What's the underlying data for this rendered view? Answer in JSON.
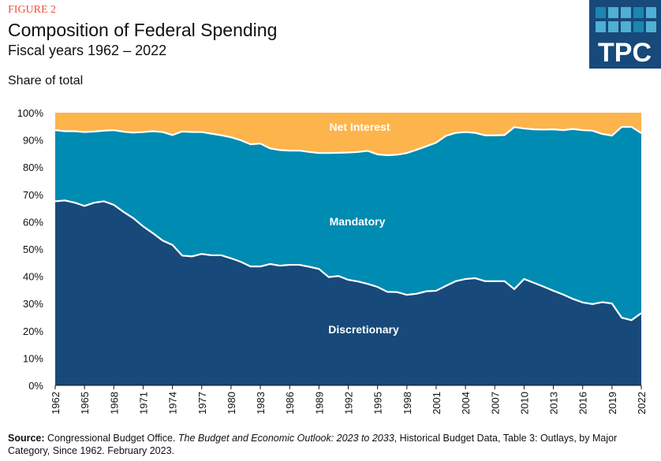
{
  "header": {
    "figure": "FIGURE 2",
    "title": "Composition of Federal Spending",
    "subtitle": "Fiscal years 1962 – 2022",
    "logo_text": "TPC"
  },
  "source": {
    "label": "Source:",
    "text1": " Congressional Budget Office. ",
    "italic": "The Budget and Economic Outlook: 2023 to 2033",
    "text2": ", Historical Budget Data, Table 3: Outlays, by Major Category, Since 1962. February 2023."
  },
  "chart_data": {
    "type": "area",
    "stacked": true,
    "title": "Composition of Federal Spending",
    "subtitle": "Fiscal years 1962 – 2022",
    "ylabel": "Share of total",
    "xlabel": "",
    "ylim": [
      0,
      100
    ],
    "xlim": [
      1962,
      2022
    ],
    "yticks": [
      "0%",
      "10%",
      "20%",
      "30%",
      "40%",
      "50%",
      "60%",
      "70%",
      "80%",
      "90%",
      "100%"
    ],
    "xticks": [
      "1962",
      "1965",
      "1968",
      "1971",
      "1974",
      "1977",
      "1980",
      "1983",
      "1986",
      "1989",
      "1992",
      "1995",
      "1998",
      "2001",
      "2004",
      "2007",
      "2010",
      "2013",
      "2016",
      "2019",
      "2022"
    ],
    "grid": false,
    "x_start": 1962,
    "series": [
      {
        "name": "Discretionary",
        "color": "#17497a",
        "values": [
          67.5,
          67.8,
          67.0,
          65.8,
          67.0,
          67.5,
          66.2,
          63.6,
          61.3,
          58.3,
          55.8,
          53.1,
          51.5,
          47.6,
          47.3,
          48.2,
          47.7,
          47.7,
          46.6,
          45.3,
          43.6,
          43.6,
          44.5,
          43.9,
          44.2,
          44.2,
          43.5,
          42.7,
          39.7,
          40.1,
          38.7,
          38.1,
          37.2,
          36.1,
          34.3,
          34.2,
          33.2,
          33.6,
          34.5,
          34.7,
          36.5,
          38.2,
          39.0,
          39.3,
          38.2,
          38.2,
          38.2,
          35.3,
          39.0,
          37.6,
          36.2,
          34.7,
          33.3,
          31.7,
          30.4,
          29.8,
          30.5,
          30.0,
          24.8,
          23.9,
          26.5
        ]
      },
      {
        "name": "Mandatory",
        "color": "#008bb2",
        "values": [
          26.1,
          25.4,
          26.2,
          27.1,
          26.1,
          25.9,
          27.4,
          29.4,
          31.4,
          34.6,
          37.4,
          39.8,
          40.3,
          45.5,
          45.6,
          44.7,
          44.6,
          44.0,
          44.4,
          44.6,
          44.8,
          45.1,
          42.4,
          42.4,
          41.9,
          41.9,
          42.1,
          42.5,
          45.5,
          45.2,
          46.7,
          47.5,
          48.8,
          48.6,
          50.1,
          50.4,
          52.0,
          52.8,
          53.2,
          54.3,
          55.0,
          54.4,
          53.9,
          53.3,
          53.5,
          53.5,
          53.6,
          59.4,
          55.2,
          56.3,
          57.6,
          59.2,
          60.3,
          62.3,
          63.2,
          63.6,
          61.7,
          61.6,
          70.0,
          70.9,
          66.0
        ]
      },
      {
        "name": "Net Interest",
        "color": "#fdb44b",
        "values": [
          6.4,
          6.8,
          6.8,
          7.1,
          6.9,
          6.6,
          6.4,
          7.0,
          7.3,
          7.1,
          6.8,
          7.1,
          8.2,
          6.9,
          7.1,
          7.1,
          7.7,
          8.3,
          9.0,
          10.1,
          11.6,
          11.3,
          13.1,
          13.7,
          13.9,
          13.9,
          14.4,
          14.8,
          14.8,
          14.7,
          14.6,
          14.4,
          14.0,
          15.3,
          15.6,
          15.4,
          14.8,
          13.6,
          12.3,
          11.0,
          8.5,
          7.4,
          7.1,
          7.4,
          8.3,
          8.3,
          8.2,
          5.3,
          5.8,
          6.1,
          6.2,
          6.1,
          6.4,
          6.0,
          6.4,
          6.6,
          7.8,
          8.4,
          5.2,
          5.2,
          7.5
        ]
      }
    ]
  }
}
